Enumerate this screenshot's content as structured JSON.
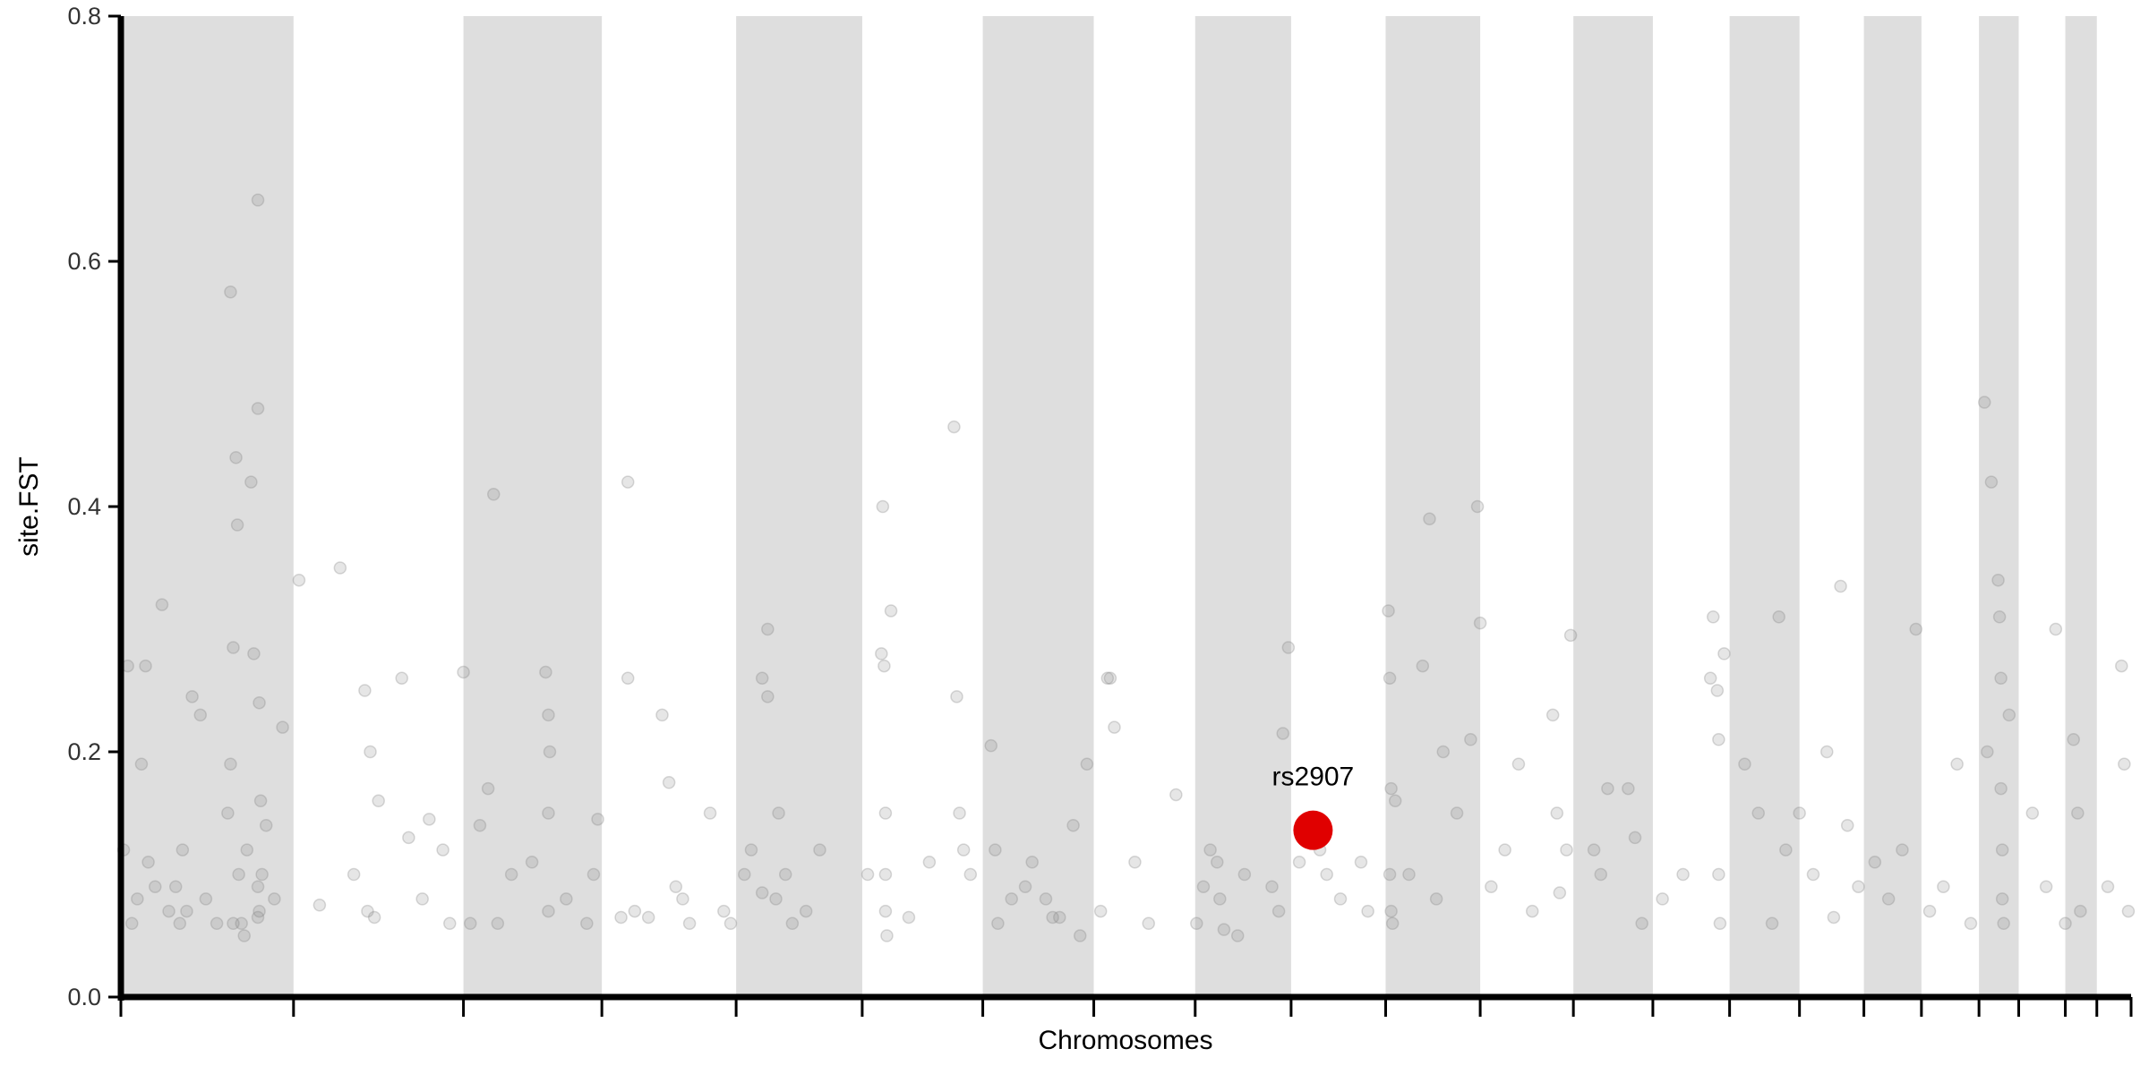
{
  "chart_data": {
    "type": "scatter",
    "xlabel": "Chromosomes",
    "ylabel": "site.FST",
    "xlim": [
      0,
      1467
    ],
    "ylim": [
      0,
      0.8
    ],
    "yticks": [
      {
        "value": 0,
        "label": "0.0"
      },
      0.2,
      0.4,
      0.6,
      0.8
    ],
    "xticks": [
      0,
      126,
      250,
      351,
      449,
      541,
      629,
      710,
      784,
      854,
      923,
      992,
      1060,
      1118,
      1174,
      1225,
      1272,
      1314,
      1356,
      1385,
      1419,
      1442,
      1467
    ],
    "shade_alternate": true,
    "shade_color": "#dedede",
    "series": [
      {
        "color": "#808080",
        "x": [
          2,
          5,
          8,
          12,
          15,
          18,
          20,
          25,
          30,
          35,
          40,
          43,
          45,
          48,
          52,
          58,
          62,
          70,
          78,
          80,
          82,
          84,
          85,
          86,
          88,
          92,
          95,
          97,
          100,
          100,
          101,
          101,
          102,
          103,
          106,
          112,
          118,
          80,
          82,
          100,
          100,
          90,
          130,
          145,
          160,
          170,
          178,
          180,
          182,
          185,
          188,
          205,
          210,
          220,
          225,
          235,
          240,
          250,
          255,
          262,
          268,
          272,
          275,
          285,
          300,
          310,
          312,
          313,
          312,
          312,
          325,
          340,
          348,
          345,
          365,
          370,
          370,
          375,
          385,
          395,
          400,
          405,
          410,
          415,
          430,
          440,
          445,
          455,
          460,
          468,
          468,
          472,
          472,
          478,
          480,
          485,
          490,
          500,
          510,
          545,
          555,
          556,
          557,
          558,
          558,
          558,
          559,
          562,
          575,
          590,
          608,
          610,
          612,
          615,
          620,
          635,
          638,
          640,
          650,
          660,
          665,
          675,
          680,
          685,
          695,
          700,
          705,
          715,
          720,
          722,
          725,
          740,
          750,
          770,
          785,
          790,
          795,
          800,
          802,
          805,
          815,
          820,
          840,
          845,
          852,
          848,
          860,
          875,
          880,
          890,
          905,
          910,
          925,
          926,
          927,
          926,
          927,
          928,
          930,
          940,
          950,
          955,
          960,
          965,
          975,
          985,
          990,
          992,
          1000,
          1010,
          1020,
          1030,
          1045,
          1048,
          1050,
          1055,
          1058,
          1075,
          1080,
          1085,
          1100,
          1105,
          1110,
          1125,
          1140,
          1160,
          1162,
          1165,
          1166,
          1166,
          1167,
          1170,
          1185,
          1195,
          1205,
          1210,
          1215,
          1225,
          1235,
          1245,
          1250,
          1255,
          1260,
          1268,
          1280,
          1290,
          1300,
          1310,
          1320,
          1330,
          1340,
          1350,
          1360,
          1362,
          1365,
          1370,
          1371,
          1372,
          1372,
          1373,
          1373,
          1374,
          1378,
          1395,
          1405,
          1412,
          1419,
          1425,
          1428,
          1430,
          1450,
          1460,
          1462,
          1465
        ],
        "y": [
          0.12,
          0.27,
          0.06,
          0.08,
          0.19,
          0.27,
          0.11,
          0.09,
          0.32,
          0.07,
          0.09,
          0.06,
          0.12,
          0.07,
          0.245,
          0.23,
          0.08,
          0.06,
          0.15,
          0.575,
          0.285,
          0.44,
          0.385,
          0.1,
          0.06,
          0.12,
          0.42,
          0.28,
          0.65,
          0.48,
          0.24,
          0.07,
          0.16,
          0.1,
          0.14,
          0.08,
          0.22,
          0.19,
          0.06,
          0.09,
          0.065,
          0.05,
          0.34,
          0.075,
          0.35,
          0.1,
          0.25,
          0.07,
          0.2,
          0.065,
          0.16,
          0.26,
          0.13,
          0.08,
          0.145,
          0.12,
          0.06,
          0.265,
          0.06,
          0.14,
          0.17,
          0.41,
          0.06,
          0.1,
          0.11,
          0.265,
          0.23,
          0.2,
          0.15,
          0.07,
          0.08,
          0.06,
          0.145,
          0.1,
          0.065,
          0.42,
          0.26,
          0.07,
          0.065,
          0.23,
          0.175,
          0.09,
          0.08,
          0.06,
          0.15,
          0.07,
          0.06,
          0.1,
          0.12,
          0.26,
          0.085,
          0.3,
          0.245,
          0.08,
          0.15,
          0.1,
          0.06,
          0.07,
          0.12,
          0.1,
          0.28,
          0.4,
          0.27,
          0.15,
          0.1,
          0.07,
          0.05,
          0.315,
          0.065,
          0.11,
          0.465,
          0.245,
          0.15,
          0.12,
          0.1,
          0.205,
          0.12,
          0.06,
          0.08,
          0.09,
          0.11,
          0.08,
          0.065,
          0.065,
          0.14,
          0.05,
          0.19,
          0.07,
          0.26,
          0.26,
          0.22,
          0.11,
          0.06,
          0.165,
          0.06,
          0.09,
          0.12,
          0.11,
          0.08,
          0.055,
          0.05,
          0.1,
          0.09,
          0.07,
          0.285,
          0.215,
          0.11,
          0.12,
          0.1,
          0.08,
          0.11,
          0.07,
          0.315,
          0.26,
          0.17,
          0.1,
          0.07,
          0.06,
          0.16,
          0.1,
          0.27,
          0.39,
          0.08,
          0.2,
          0.15,
          0.21,
          0.4,
          0.305,
          0.09,
          0.12,
          0.19,
          0.07,
          0.23,
          0.15,
          0.085,
          0.12,
          0.295,
          0.12,
          0.1,
          0.17,
          0.17,
          0.13,
          0.06,
          0.08,
          0.1,
          0.26,
          0.31,
          0.25,
          0.21,
          0.1,
          0.06,
          0.28,
          0.19,
          0.15,
          0.06,
          0.31,
          0.12,
          0.15,
          0.1,
          0.2,
          0.065,
          0.335,
          0.14,
          0.09,
          0.11,
          0.08,
          0.12,
          0.3,
          0.07,
          0.09,
          0.19,
          0.06,
          0.485,
          0.2,
          0.42,
          0.34,
          0.31,
          0.26,
          0.17,
          0.12,
          0.08,
          0.06,
          0.23,
          0.15,
          0.09,
          0.3,
          0.06,
          0.21,
          0.15,
          0.07,
          0.09,
          0.27,
          0.19,
          0.07
        ]
      },
      {
        "color": "#e00000",
        "x": [
          870
        ],
        "y": [
          0.136
        ],
        "highlight": true
      }
    ],
    "annotations": [
      {
        "text": "rs2907",
        "x": 870,
        "y": 0.136
      }
    ]
  }
}
